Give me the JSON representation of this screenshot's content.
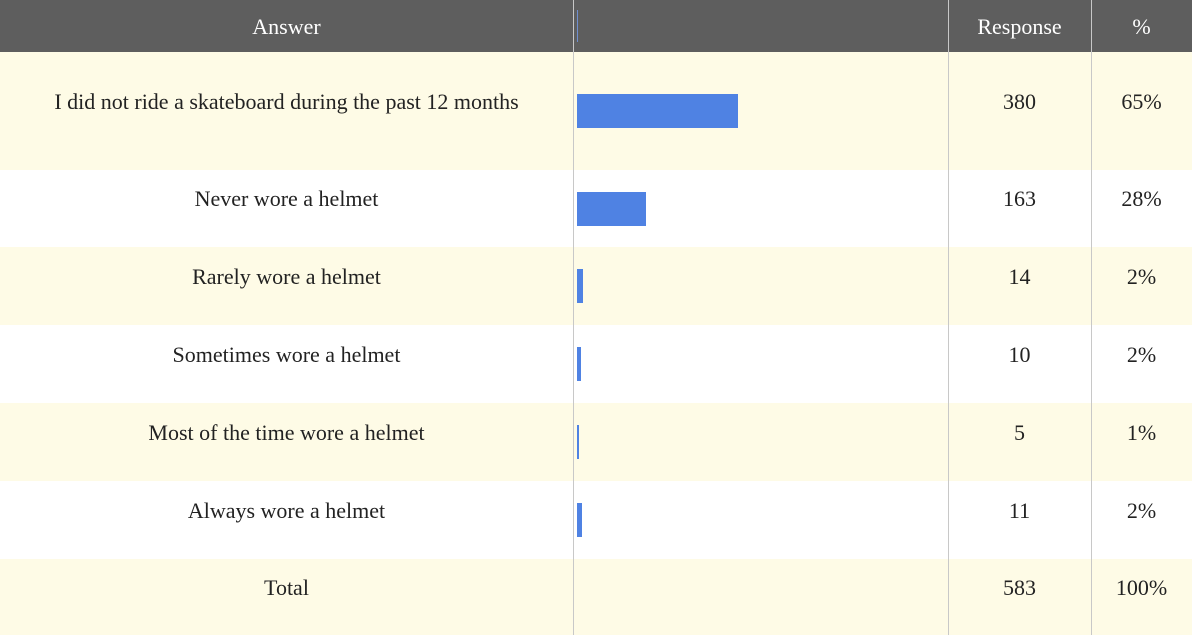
{
  "header": {
    "answer": "Answer",
    "response": "Response",
    "percent": "%"
  },
  "rows": [
    {
      "answer": "I did not ride a skateboard during the past 12 months",
      "response": 380,
      "percent": "65%"
    },
    {
      "answer": "Never wore a helmet",
      "response": 163,
      "percent": "28%"
    },
    {
      "answer": "Rarely wore a helmet",
      "response": 14,
      "percent": "2%"
    },
    {
      "answer": "Sometimes wore a helmet",
      "response": 10,
      "percent": "2%"
    },
    {
      "answer": "Most of the time wore a helmet",
      "response": 5,
      "percent": "1%"
    },
    {
      "answer": "Always wore a helmet",
      "response": 11,
      "percent": "2%"
    }
  ],
  "total": {
    "answer": "Total",
    "response": 583,
    "percent": "100%"
  }
}
